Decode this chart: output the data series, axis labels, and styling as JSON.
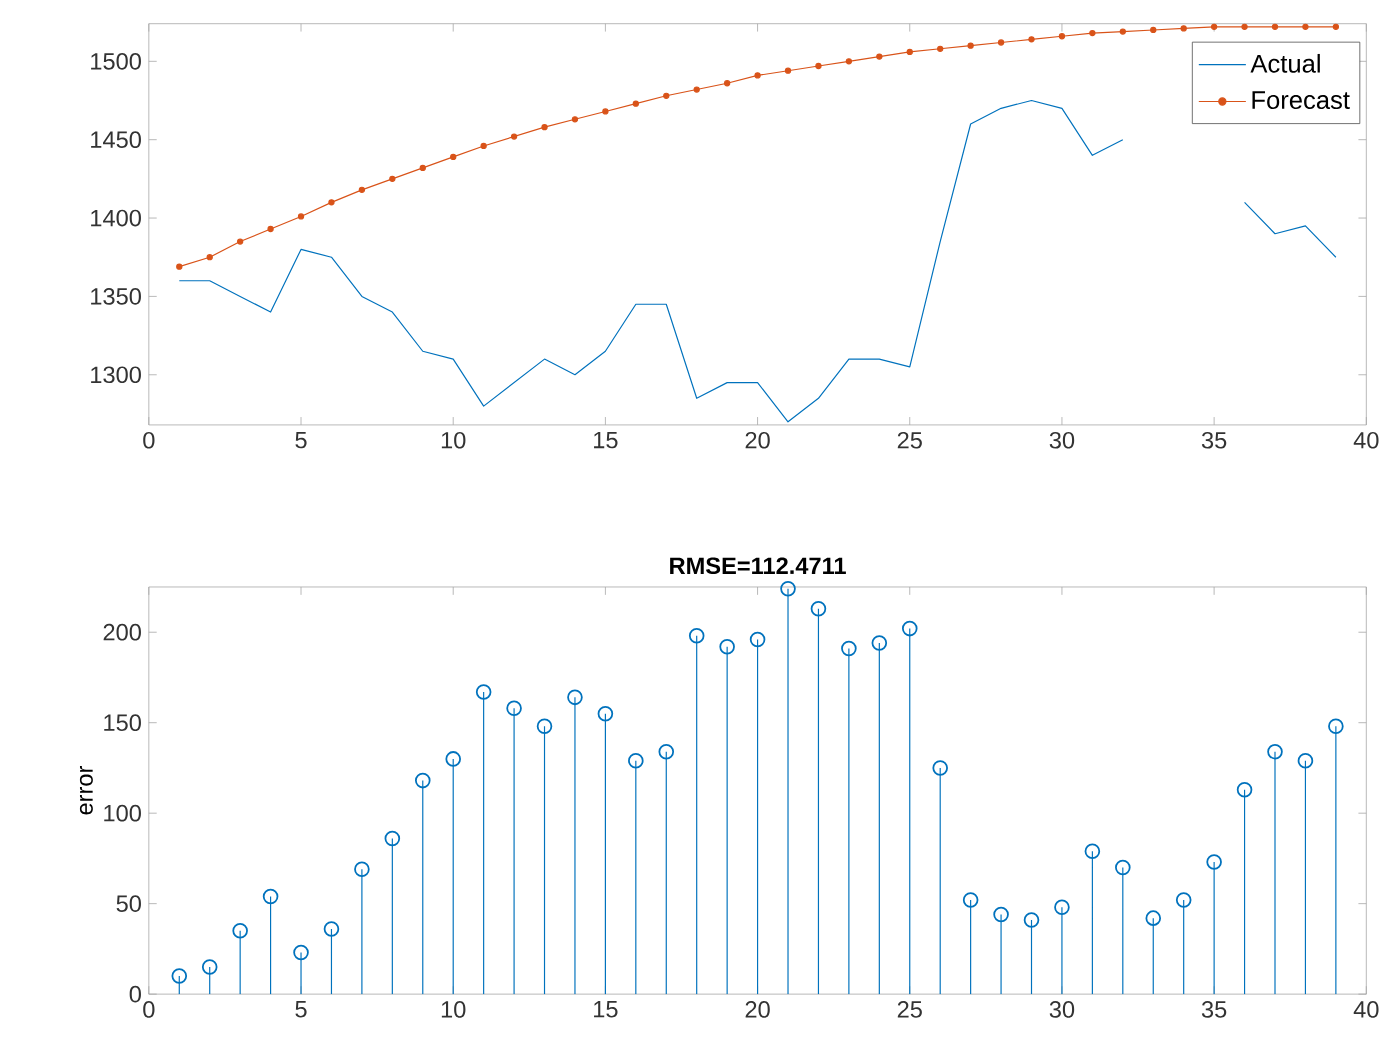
{
  "chart_data": [
    {
      "type": "line",
      "x": [
        1,
        2,
        3,
        4,
        5,
        6,
        7,
        8,
        9,
        10,
        11,
        12,
        13,
        14,
        15,
        16,
        17,
        18,
        19,
        20,
        21,
        22,
        23,
        24,
        25,
        26,
        27,
        28,
        29,
        30,
        31,
        32,
        33,
        34,
        35,
        36,
        37,
        38,
        39
      ],
      "series": [
        {
          "name": "Actual",
          "color": "#0072bd",
          "marker": "none",
          "values": [
            1360,
            1360,
            1350,
            1340,
            1380,
            1375,
            1350,
            1340,
            1315,
            1310,
            1280,
            1295,
            1310,
            1300,
            1315,
            1345,
            1345,
            1285,
            1295,
            1295,
            1270,
            1285,
            1310,
            1310,
            1305,
            1385,
            1460,
            1470,
            1475,
            1470,
            1440,
            1450,
            null,
            null,
            null,
            1410,
            1390,
            1395,
            1375
          ]
        },
        {
          "name": "Forecast",
          "color": "#d95319",
          "marker": "circle",
          "values": [
            1369,
            1375,
            1385,
            1393,
            1401,
            1410,
            1418,
            1425,
            1432,
            1439,
            1446,
            1452,
            1458,
            1463,
            1468,
            1473,
            1478,
            1482,
            1486,
            1491,
            1494,
            1497,
            1500,
            1503,
            1506,
            1508,
            1510,
            1512,
            1514,
            1516,
            1518,
            1519,
            1520,
            1521,
            1522,
            1522,
            1522,
            1522,
            1522
          ]
        }
      ],
      "xlim": [
        0,
        40
      ],
      "xticks": [
        0,
        5,
        10,
        15,
        20,
        25,
        30,
        35,
        40
      ],
      "ylim": [
        1268,
        1524
      ],
      "yticks": [
        1300,
        1350,
        1400,
        1450,
        1500
      ],
      "legend": "top right",
      "line_style": "solid"
    },
    {
      "type": "lollipop",
      "title": "RMSE=112.4711",
      "ylabel": "error",
      "marker": "circle",
      "x": [
        1,
        2,
        3,
        4,
        5,
        6,
        7,
        8,
        9,
        10,
        11,
        12,
        13,
        14,
        15,
        16,
        17,
        18,
        19,
        20,
        21,
        22,
        23,
        24,
        25,
        26,
        27,
        28,
        29,
        30,
        31,
        32,
        33,
        34,
        35,
        36,
        37,
        38,
        39
      ],
      "series": [
        {
          "color": "#0072bd",
          "values": [
            10,
            15,
            35,
            54,
            23,
            36,
            69,
            86,
            118,
            130,
            167,
            158,
            148,
            164,
            155,
            129,
            134,
            198,
            192,
            196,
            224,
            213,
            191,
            194,
            202,
            125,
            52,
            44,
            41,
            48,
            79,
            70,
            42,
            52,
            73,
            113,
            134,
            129,
            148
          ]
        }
      ],
      "xlim": [
        0,
        40
      ],
      "xticks": [
        0,
        5,
        10,
        15,
        20,
        25,
        30,
        35,
        40
      ],
      "ylim": [
        0,
        225
      ],
      "yticks": [
        0,
        50,
        100,
        150,
        200
      ]
    }
  ]
}
